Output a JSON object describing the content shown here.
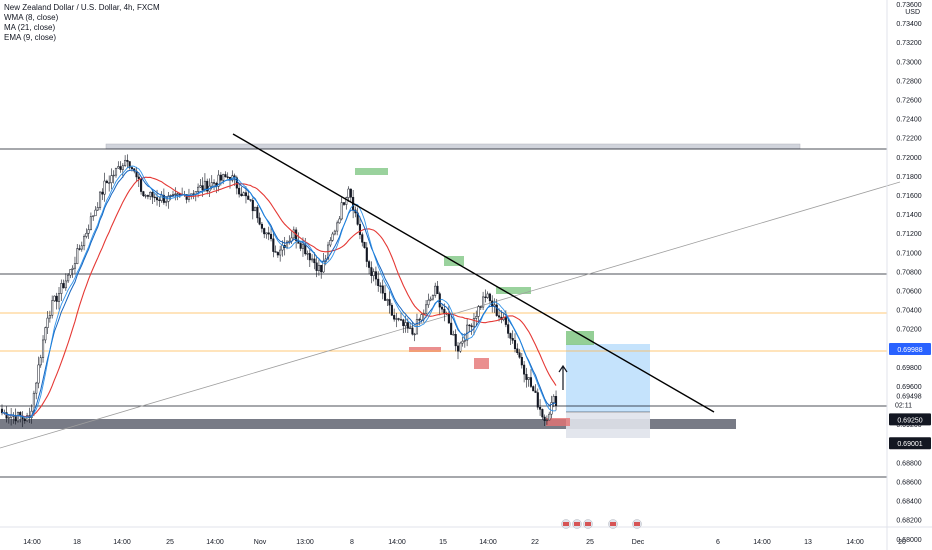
{
  "legend": {
    "title": "New Zealand Dollar / U.S. Dollar, 4h, FXCM",
    "indicators": [
      "WMA (8, close)",
      "MA (21, close)",
      "EMA (9, close)"
    ]
  },
  "price_axis": {
    "currency": "USD",
    "ticks": [
      "0.73600",
      "0.73400",
      "0.73200",
      "0.73000",
      "0.72800",
      "0.72600",
      "0.72400",
      "0.72200",
      "0.72000",
      "0.71800",
      "0.71600",
      "0.71400",
      "0.71200",
      "0.71000",
      "0.70800",
      "0.70600",
      "0.70400",
      "0.70200",
      "0.69800",
      "0.69600",
      "0.69498",
      "0.69200",
      "0.69000",
      "0.68800",
      "0.68600",
      "0.68400",
      "0.68200",
      "0.68000"
    ],
    "price_label_last": "0.69498",
    "countdown": "02:11",
    "badges": [
      {
        "text": "0.69988",
        "price": 0.69988,
        "bg": "#2962ff",
        "fg": "#ffffff"
      },
      {
        "text": "0.69250",
        "price": 0.6925,
        "bg": "#131722",
        "fg": "#ffffff"
      },
      {
        "text": "0.69001",
        "price": 0.69001,
        "bg": "#131722",
        "fg": "#ffffff"
      }
    ]
  },
  "time_axis": {
    "labels": [
      "14:00",
      "18",
      "14:00",
      "25",
      "14:00",
      "Nov",
      "13:00",
      "8",
      "14:00",
      "15",
      "14:00",
      "22",
      "25",
      "Dec",
      "6",
      "14:00",
      "13",
      "14:00",
      "20"
    ]
  },
  "colors": {
    "candle": "#131722",
    "wma": "#1e88e5",
    "ma": "#e53935",
    "ema": "#1565c0",
    "trendline": "#000000",
    "support_band": "#787b86",
    "top_band": "#d1d4dc",
    "orange_level": "#ffb74d",
    "supply_zone": "#81c784",
    "demand_zone": "#e57373",
    "position_zone": "#bbdefb",
    "grey_zone": "#e0e3eb"
  },
  "chart_data": {
    "type": "candlestick",
    "title": "New Zealand Dollar / U.S. Dollar, 4h, FXCM",
    "xlabel": "",
    "ylabel": "USD",
    "ylim": [
      0.68,
      0.7365
    ],
    "grid": false,
    "series": [
      {
        "name": "WMA (8, close)"
      },
      {
        "name": "MA (21, close)"
      },
      {
        "name": "EMA (9, close)"
      }
    ],
    "key_prices": [
      0.72225,
      0.7085,
      0.7032,
      0.69988,
      0.6925,
      0.6912,
      0.69001,
      0.6865
    ],
    "candle_anchors": [
      {
        "i": 0,
        "close": 0.6932
      },
      {
        "i": 12,
        "close": 0.6925
      },
      {
        "i": 20,
        "close": 0.7035
      },
      {
        "i": 30,
        "close": 0.708
      },
      {
        "i": 45,
        "close": 0.717
      },
      {
        "i": 55,
        "close": 0.72
      },
      {
        "i": 62,
        "close": 0.716
      },
      {
        "i": 75,
        "close": 0.7155
      },
      {
        "i": 90,
        "close": 0.717
      },
      {
        "i": 100,
        "close": 0.718
      },
      {
        "i": 112,
        "close": 0.714
      },
      {
        "i": 120,
        "close": 0.71
      },
      {
        "i": 128,
        "close": 0.712
      },
      {
        "i": 140,
        "close": 0.708
      },
      {
        "i": 152,
        "close": 0.717
      },
      {
        "i": 160,
        "close": 0.709
      },
      {
        "i": 172,
        "close": 0.703
      },
      {
        "i": 180,
        "close": 0.7015
      },
      {
        "i": 190,
        "close": 0.706
      },
      {
        "i": 200,
        "close": 0.7
      },
      {
        "i": 212,
        "close": 0.7055
      },
      {
        "i": 222,
        "close": 0.702
      },
      {
        "i": 232,
        "close": 0.696
      },
      {
        "i": 238,
        "close": 0.6925
      },
      {
        "i": 242,
        "close": 0.6945
      }
    ]
  }
}
